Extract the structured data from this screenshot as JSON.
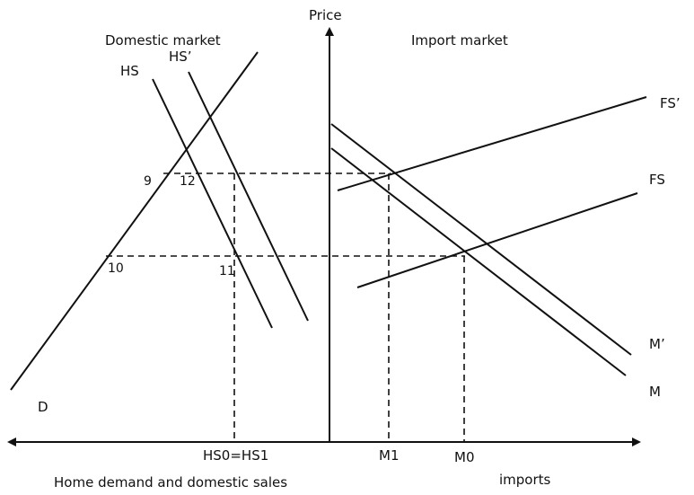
{
  "labels": {
    "price_axis": "Price",
    "domestic_market": "Domestic market",
    "import_market": "Import market",
    "hs": "HS",
    "hs_prime": "HS’",
    "fs_prime": "FS’",
    "fs": "FS",
    "m_prime": "M’",
    "m": "M",
    "d": "D",
    "point_9": "9",
    "point_12": "12",
    "point_10": "10",
    "point_11": "11",
    "hs0_hs1": "HS0=HS1",
    "m1": "M1",
    "m0": "M0",
    "x_left": "Home demand and domestic sales",
    "x_right": "imports"
  },
  "colors": {
    "line": "#111111",
    "background": "#ffffff"
  }
}
